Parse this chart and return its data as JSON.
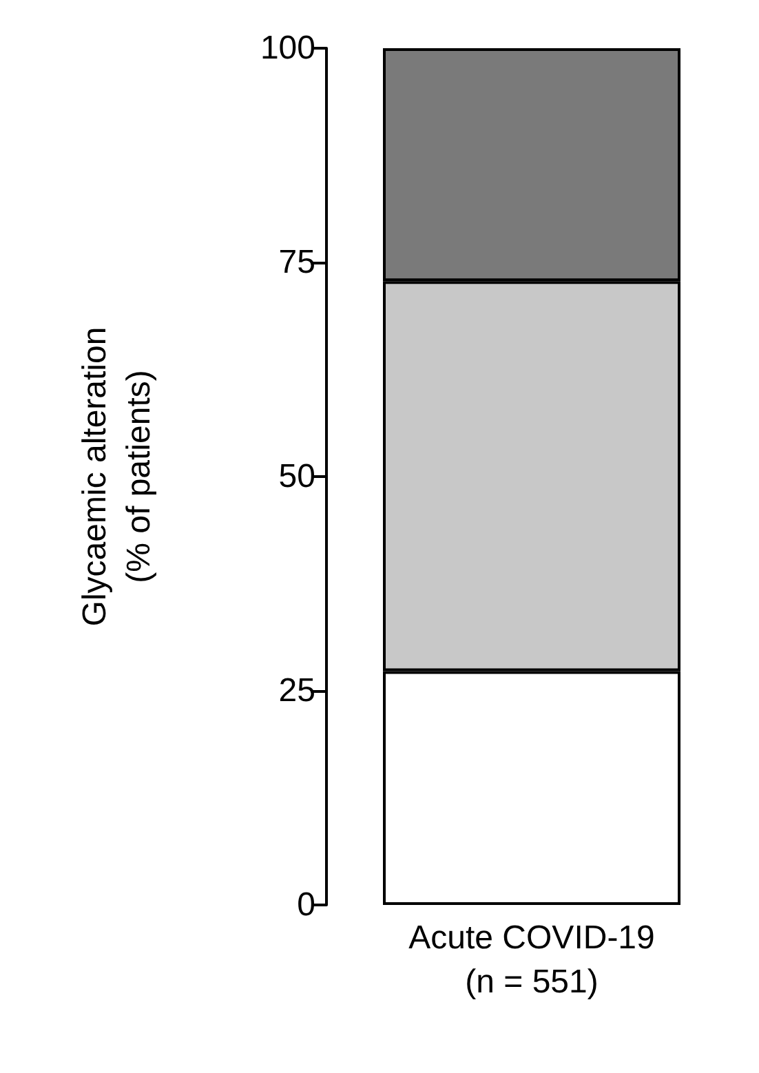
{
  "chart_data": {
    "type": "bar",
    "stacked": true,
    "ylabel": "Glycaemic alteration\n(% of patients)",
    "categories": [
      "Acute COVID-19\n(n = 551)"
    ],
    "series": [
      {
        "color": "#ffffff",
        "values": [
          27.3
        ]
      },
      {
        "color": "#c8c8c8",
        "values": [
          45.5
        ]
      },
      {
        "color": "#7a7a7a",
        "values": [
          27.2
        ]
      }
    ],
    "ylim": [
      0,
      100
    ],
    "yticks": [
      0,
      25,
      50,
      75,
      100
    ],
    "grid": false
  }
}
